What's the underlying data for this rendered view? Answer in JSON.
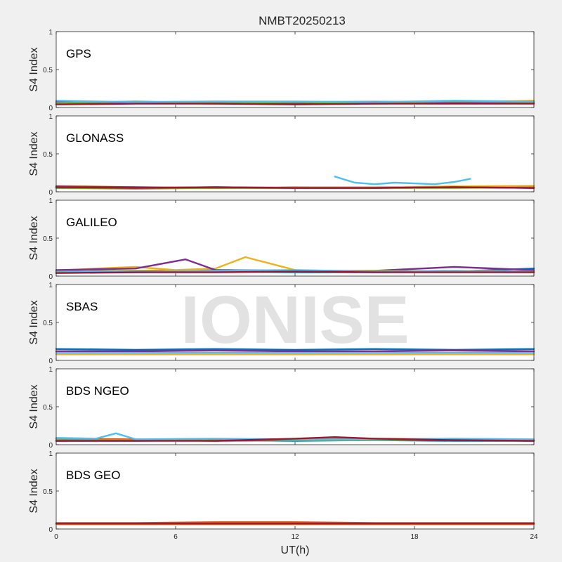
{
  "figure": {
    "title": "NMBT20250213",
    "xlabel": "UT(h)",
    "watermark": "IONISE",
    "background": "#f0f0f0",
    "axes_background": "#ffffff"
  },
  "chart_data": [
    {
      "type": "line",
      "label": "GPS",
      "ylabel": "S4 Index",
      "xlim": [
        0,
        24
      ],
      "ylim": [
        0,
        1
      ],
      "x_ticks": [
        "0",
        "6",
        "12",
        "18",
        "24"
      ],
      "y_ticks": [
        "0",
        "0.5",
        "1"
      ],
      "series": [
        {
          "color": "#0072bd",
          "x": [
            0,
            4,
            8,
            12,
            16,
            20,
            24
          ],
          "values": [
            0.06,
            0.07,
            0.06,
            0.07,
            0.06,
            0.06,
            0.07
          ]
        },
        {
          "color": "#d95319",
          "x": [
            0,
            4,
            8,
            12,
            16,
            20,
            24
          ],
          "values": [
            0.05,
            0.06,
            0.05,
            0.06,
            0.05,
            0.06,
            0.06
          ]
        },
        {
          "color": "#edb120",
          "x": [
            0,
            4,
            8,
            12,
            16,
            20,
            24
          ],
          "values": [
            0.08,
            0.07,
            0.08,
            0.07,
            0.08,
            0.07,
            0.09
          ]
        },
        {
          "color": "#7e2f8e",
          "x": [
            0,
            4,
            8,
            12,
            16,
            20,
            24
          ],
          "values": [
            0.07,
            0.06,
            0.07,
            0.06,
            0.07,
            0.07,
            0.06
          ]
        },
        {
          "color": "#77ac30",
          "x": [
            0,
            4,
            8,
            12,
            16,
            20,
            24
          ],
          "values": [
            0.06,
            0.08,
            0.06,
            0.07,
            0.06,
            0.08,
            0.07
          ]
        },
        {
          "color": "#4dbeee",
          "x": [
            0,
            4,
            8,
            12,
            16,
            20,
            24
          ],
          "values": [
            0.09,
            0.07,
            0.08,
            0.08,
            0.07,
            0.09,
            0.08
          ]
        },
        {
          "color": "#a2142f",
          "x": [
            0,
            4,
            8,
            12,
            16,
            20,
            24
          ],
          "values": [
            0.04,
            0.05,
            0.05,
            0.04,
            0.05,
            0.05,
            0.05
          ]
        }
      ]
    },
    {
      "type": "line",
      "label": "GLONASS",
      "ylabel": "S4 Index",
      "xlim": [
        0,
        24
      ],
      "ylim": [
        0,
        1
      ],
      "x_ticks": [
        "0",
        "6",
        "12",
        "18",
        "24"
      ],
      "y_ticks": [
        "0",
        "0.5",
        "1"
      ],
      "series": [
        {
          "color": "#0072bd",
          "x": [
            0,
            4,
            8,
            12,
            16,
            20,
            24
          ],
          "values": [
            0.05,
            0.05,
            0.06,
            0.05,
            0.05,
            0.06,
            0.05
          ]
        },
        {
          "color": "#d95319",
          "x": [
            0,
            4,
            8,
            12,
            16,
            20,
            24
          ],
          "values": [
            0.06,
            0.05,
            0.05,
            0.06,
            0.05,
            0.07,
            0.05
          ]
        },
        {
          "color": "#edb120",
          "x": [
            0,
            4,
            8,
            12,
            16,
            20,
            24
          ],
          "values": [
            0.08,
            0.06,
            0.05,
            0.06,
            0.06,
            0.07,
            0.08
          ]
        },
        {
          "color": "#7e2f8e",
          "x": [
            0,
            4,
            8,
            12,
            16,
            20,
            24
          ],
          "values": [
            0.07,
            0.06,
            0.05,
            0.05,
            0.05,
            0.06,
            0.05
          ]
        },
        {
          "color": "#77ac30",
          "x": [
            0,
            4,
            8,
            12,
            16,
            20,
            24
          ],
          "values": [
            0.05,
            0.04,
            0.05,
            0.05,
            0.05,
            0.05,
            0.06
          ]
        },
        {
          "color": "#4dbeee",
          "x": [
            14,
            15,
            16,
            17,
            18,
            19,
            20,
            20.8
          ],
          "values": [
            0.2,
            0.12,
            0.1,
            0.12,
            0.11,
            0.1,
            0.13,
            0.17
          ]
        },
        {
          "color": "#a2142f",
          "x": [
            0,
            4,
            8,
            12,
            16,
            20,
            24
          ],
          "values": [
            0.06,
            0.05,
            0.06,
            0.05,
            0.05,
            0.06,
            0.05
          ]
        }
      ]
    },
    {
      "type": "line",
      "label": "GALILEO",
      "ylabel": "S4 Index",
      "xlim": [
        0,
        24
      ],
      "ylim": [
        0,
        1
      ],
      "x_ticks": [
        "0",
        "6",
        "12",
        "18",
        "24"
      ],
      "y_ticks": [
        "0",
        "0.5",
        "1"
      ],
      "series": [
        {
          "color": "#0072bd",
          "x": [
            0,
            4,
            8,
            12,
            16,
            20,
            24
          ],
          "values": [
            0.05,
            0.05,
            0.06,
            0.05,
            0.05,
            0.06,
            0.1
          ]
        },
        {
          "color": "#d95319",
          "x": [
            0,
            4,
            8,
            12,
            16,
            20,
            24
          ],
          "values": [
            0.06,
            0.07,
            0.08,
            0.07,
            0.06,
            0.07,
            0.06
          ]
        },
        {
          "color": "#edb120",
          "x": [
            0,
            2,
            4,
            6,
            8,
            9.5,
            12,
            16,
            20,
            24
          ],
          "values": [
            0.07,
            0.1,
            0.12,
            0.08,
            0.1,
            0.25,
            0.08,
            0.06,
            0.07,
            0.06
          ]
        },
        {
          "color": "#7e2f8e",
          "x": [
            0,
            4,
            6.5,
            8,
            12,
            16,
            20,
            24
          ],
          "values": [
            0.08,
            0.1,
            0.22,
            0.08,
            0.07,
            0.07,
            0.12,
            0.08
          ]
        },
        {
          "color": "#77ac30",
          "x": [
            0,
            4,
            8,
            12,
            16,
            20,
            24
          ],
          "values": [
            0.06,
            0.07,
            0.06,
            0.06,
            0.07,
            0.06,
            0.06
          ]
        },
        {
          "color": "#4dbeee",
          "x": [
            0,
            4,
            8,
            12,
            16,
            20,
            24
          ],
          "values": [
            0.05,
            0.06,
            0.07,
            0.08,
            0.06,
            0.07,
            0.05
          ]
        },
        {
          "color": "#a2142f",
          "x": [
            0,
            4,
            8,
            12,
            16,
            20,
            24
          ],
          "values": [
            0.04,
            0.05,
            0.05,
            0.06,
            0.05,
            0.05,
            0.05
          ]
        }
      ]
    },
    {
      "type": "line",
      "label": "SBAS",
      "ylabel": "S4 Index",
      "xlim": [
        0,
        24
      ],
      "ylim": [
        0,
        1
      ],
      "x_ticks": [
        "0",
        "6",
        "12",
        "18",
        "24"
      ],
      "y_ticks": [
        "0",
        "0.5",
        "1"
      ],
      "series": [
        {
          "color": "#0072bd",
          "x": [
            0,
            4,
            8,
            12,
            16,
            20,
            24
          ],
          "values": [
            0.15,
            0.14,
            0.15,
            0.14,
            0.15,
            0.14,
            0.15
          ]
        },
        {
          "color": "#7e2f8e",
          "x": [
            0,
            4,
            8,
            12,
            16,
            20,
            24
          ],
          "values": [
            0.12,
            0.12,
            0.13,
            0.12,
            0.12,
            0.13,
            0.12
          ]
        },
        {
          "color": "#4dbeee",
          "x": [
            0,
            4,
            8,
            12,
            16,
            20,
            24
          ],
          "values": [
            0.1,
            0.1,
            0.1,
            0.1,
            0.1,
            0.1,
            0.1
          ]
        },
        {
          "color": "#edb120",
          "x": [
            0,
            4,
            8,
            12,
            16,
            20,
            24
          ],
          "values": [
            0.08,
            0.08,
            0.08,
            0.08,
            0.08,
            0.08,
            0.08
          ]
        }
      ]
    },
    {
      "type": "line",
      "label": "BDS NGEO",
      "ylabel": "S4 Index",
      "xlim": [
        0,
        24
      ],
      "ylim": [
        0,
        1
      ],
      "x_ticks": [
        "0",
        "6",
        "12",
        "18",
        "24"
      ],
      "y_ticks": [
        "0",
        "0.5",
        "1"
      ],
      "series": [
        {
          "color": "#0072bd",
          "x": [
            0,
            4,
            8,
            12,
            16,
            20,
            24
          ],
          "values": [
            0.05,
            0.05,
            0.06,
            0.05,
            0.06,
            0.05,
            0.05
          ]
        },
        {
          "color": "#d95319",
          "x": [
            0,
            4,
            8,
            12,
            16,
            20,
            24
          ],
          "values": [
            0.08,
            0.07,
            0.06,
            0.07,
            0.08,
            0.07,
            0.06
          ]
        },
        {
          "color": "#edb120",
          "x": [
            0,
            4,
            8,
            12,
            16,
            20,
            24
          ],
          "values": [
            0.06,
            0.06,
            0.05,
            0.06,
            0.06,
            0.08,
            0.07
          ]
        },
        {
          "color": "#7e2f8e",
          "x": [
            0,
            4,
            8,
            12,
            16,
            20,
            24
          ],
          "values": [
            0.05,
            0.06,
            0.05,
            0.06,
            0.07,
            0.06,
            0.05
          ]
        },
        {
          "color": "#77ac30",
          "x": [
            0,
            4,
            8,
            12,
            16,
            20,
            24
          ],
          "values": [
            0.07,
            0.06,
            0.07,
            0.06,
            0.06,
            0.07,
            0.06
          ]
        },
        {
          "color": "#4dbeee",
          "x": [
            0,
            2,
            3,
            4,
            8,
            12,
            16,
            20,
            24
          ],
          "values": [
            0.09,
            0.08,
            0.15,
            0.07,
            0.08,
            0.07,
            0.07,
            0.08,
            0.07
          ]
        },
        {
          "color": "#a2142f",
          "x": [
            0,
            4,
            8,
            12,
            14,
            16,
            20,
            24
          ],
          "values": [
            0.05,
            0.05,
            0.05,
            0.08,
            0.1,
            0.08,
            0.06,
            0.05
          ]
        }
      ]
    },
    {
      "type": "line",
      "label": "BDS GEO",
      "ylabel": "S4 Index",
      "xlim": [
        0,
        24
      ],
      "ylim": [
        0,
        1
      ],
      "x_ticks": [
        "0",
        "6",
        "12",
        "18",
        "24"
      ],
      "y_ticks": [
        "0",
        "0.5",
        "1"
      ],
      "series": [
        {
          "color": "#edb120",
          "x": [
            0,
            4,
            8,
            12,
            16,
            20,
            24
          ],
          "values": [
            0.06,
            0.06,
            0.06,
            0.06,
            0.06,
            0.06,
            0.06
          ]
        },
        {
          "color": "#d95319",
          "x": [
            0,
            4,
            8,
            12,
            16,
            20,
            24
          ],
          "values": [
            0.08,
            0.08,
            0.09,
            0.09,
            0.08,
            0.08,
            0.08
          ]
        },
        {
          "color": "#a2142f",
          "x": [
            0,
            4,
            8,
            12,
            16,
            20,
            24
          ],
          "values": [
            0.07,
            0.07,
            0.07,
            0.07,
            0.07,
            0.07,
            0.07
          ]
        }
      ]
    }
  ]
}
